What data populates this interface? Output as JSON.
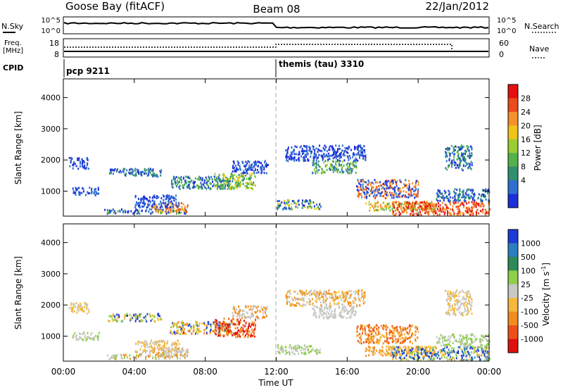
{
  "header": {
    "station": "Goose Bay (fitACF)",
    "beam": "Beam 08",
    "date": "22/Jan/2012"
  },
  "noise_panel": {
    "left_label": "N.Sky",
    "right_label": "N.Search",
    "left_ticks": [
      "10^5",
      "10^0"
    ],
    "right_ticks": [
      "10^5",
      "10^0"
    ]
  },
  "freq_panel": {
    "left_label_line1": "Freq.",
    "left_label_line2": "[MHz]",
    "right_label": "Nave",
    "left_ticks": [
      "18",
      "8"
    ],
    "right_ticks": [
      "60",
      "0"
    ]
  },
  "cpid": {
    "label": "CPID",
    "segments": [
      {
        "name": "pcp 9211",
        "start_hour": 0
      },
      {
        "name": "themis (tau) 3310",
        "start_hour": 12
      }
    ]
  },
  "colors": {
    "power": [
      "#1c2fd8",
      "#2e6fcf",
      "#2f8f6e",
      "#55b24a",
      "#9acd32",
      "#f0c419",
      "#f5902a",
      "#ec4a1a",
      "#e51010"
    ],
    "velocity": [
      "#1d3bd6",
      "#2c7fbf",
      "#2e8b57",
      "#8fcf4a",
      "#c8c8c4",
      "#f5b83a",
      "#f28c1e",
      "#ee4f17",
      "#e01010"
    ]
  },
  "chart_data": [
    {
      "type": "heatmap",
      "name": "power",
      "ylabel": "Slant Range [km]",
      "yticks": [
        "1000",
        "2000",
        "3000",
        "4000"
      ],
      "ylim": [
        200,
        4600
      ],
      "xlim_hours": [
        0,
        24
      ],
      "colorbar_label": "Power [dB]",
      "colorbar_ticks": [
        "4",
        "8",
        "12",
        "16",
        "20",
        "24",
        "28"
      ],
      "regions": [
        {
          "t0": 0.3,
          "t1": 1.4,
          "r0": 1750,
          "r1": 2100,
          "c": [
            0,
            1
          ]
        },
        {
          "t0": 0.5,
          "t1": 2.0,
          "r0": 900,
          "r1": 1150,
          "c": [
            0,
            1
          ]
        },
        {
          "t0": 2.5,
          "t1": 5.5,
          "r0": 1500,
          "r1": 1750,
          "c": [
            0,
            1,
            2
          ]
        },
        {
          "t0": 2.3,
          "t1": 7.0,
          "r0": 300,
          "r1": 450,
          "c": [
            0,
            1,
            3
          ]
        },
        {
          "t0": 5.0,
          "t1": 7.0,
          "r0": 350,
          "r1": 650,
          "c": [
            5,
            6,
            7
          ]
        },
        {
          "t0": 4.0,
          "t1": 6.5,
          "r0": 500,
          "r1": 900,
          "c": [
            0,
            1
          ]
        },
        {
          "t0": 6.0,
          "t1": 9.5,
          "r0": 1100,
          "r1": 1500,
          "c": [
            0,
            1,
            2,
            3
          ]
        },
        {
          "t0": 8.5,
          "t1": 10.8,
          "r0": 1100,
          "r1": 1600,
          "c": [
            2,
            3,
            4,
            5
          ]
        },
        {
          "t0": 9.5,
          "t1": 11.5,
          "r0": 1600,
          "r1": 2000,
          "c": [
            0,
            1
          ]
        },
        {
          "t0": 12.0,
          "t1": 14.5,
          "r0": 450,
          "r1": 750,
          "c": [
            0,
            1,
            2,
            4,
            5
          ]
        },
        {
          "t0": 14.0,
          "t1": 16.5,
          "r0": 1600,
          "r1": 2000,
          "c": [
            1,
            2,
            3,
            4
          ]
        },
        {
          "t0": 12.5,
          "t1": 17.0,
          "r0": 2000,
          "r1": 2500,
          "c": [
            0,
            1
          ]
        },
        {
          "t0": 16.5,
          "t1": 20.0,
          "r0": 800,
          "r1": 1400,
          "c": [
            0,
            1,
            6,
            7
          ]
        },
        {
          "t0": 17.0,
          "t1": 21.0,
          "r0": 400,
          "r1": 700,
          "c": [
            3,
            4,
            5,
            6
          ]
        },
        {
          "t0": 18.5,
          "t1": 24.0,
          "r0": 250,
          "r1": 700,
          "c": [
            6,
            7,
            8
          ]
        },
        {
          "t0": 21.5,
          "t1": 23.0,
          "r0": 1700,
          "r1": 2500,
          "c": [
            0,
            1,
            2,
            3
          ]
        },
        {
          "t0": 21.0,
          "t1": 24.0,
          "r0": 700,
          "r1": 1100,
          "c": [
            0,
            1,
            2
          ]
        }
      ]
    },
    {
      "type": "heatmap",
      "name": "velocity",
      "ylabel": "Slant Range [km]",
      "yticks": [
        "1000",
        "2000",
        "3000",
        "4000"
      ],
      "ylim": [
        200,
        4600
      ],
      "xlim_hours": [
        0,
        24
      ],
      "xlabel": "Time UT",
      "xticks": [
        "00:00",
        "04:00",
        "08:00",
        "12:00",
        "16:00",
        "20:00",
        "00:00"
      ],
      "colorbar_label": "Velocity [m s",
      "colorbar_label_sup": "-1",
      "colorbar_label_end": "]",
      "colorbar_ticks": [
        "1000",
        "500",
        "100",
        "25",
        "-25",
        "-100",
        "-500",
        "-1000"
      ],
      "regions": [
        {
          "t0": 0.3,
          "t1": 1.4,
          "r0": 1750,
          "r1": 2100,
          "c": [
            4,
            5
          ]
        },
        {
          "t0": 0.5,
          "t1": 2.0,
          "r0": 900,
          "r1": 1150,
          "c": [
            3,
            4
          ]
        },
        {
          "t0": 2.5,
          "t1": 5.5,
          "r0": 1500,
          "r1": 1750,
          "c": [
            0,
            3,
            5
          ]
        },
        {
          "t0": 2.3,
          "t1": 7.0,
          "r0": 300,
          "r1": 450,
          "c": [
            3,
            4,
            6
          ]
        },
        {
          "t0": 5.0,
          "t1": 7.0,
          "r0": 350,
          "r1": 650,
          "c": [
            4,
            6
          ]
        },
        {
          "t0": 4.0,
          "t1": 6.5,
          "r0": 500,
          "r1": 900,
          "c": [
            4,
            5
          ]
        },
        {
          "t0": 6.0,
          "t1": 9.5,
          "r0": 1100,
          "r1": 1500,
          "c": [
            0,
            3,
            5,
            6
          ]
        },
        {
          "t0": 8.5,
          "t1": 10.8,
          "r0": 1000,
          "r1": 1600,
          "c": [
            6,
            7,
            8
          ]
        },
        {
          "t0": 9.5,
          "t1": 11.5,
          "r0": 1600,
          "r1": 2000,
          "c": [
            4,
            6
          ]
        },
        {
          "t0": 12.0,
          "t1": 14.5,
          "r0": 450,
          "r1": 750,
          "c": [
            3,
            4
          ]
        },
        {
          "t0": 14.0,
          "t1": 16.5,
          "r0": 1600,
          "r1": 2000,
          "c": [
            4
          ]
        },
        {
          "t0": 12.5,
          "t1": 17.0,
          "r0": 2000,
          "r1": 2500,
          "c": [
            4,
            5,
            6
          ]
        },
        {
          "t0": 16.5,
          "t1": 20.0,
          "r0": 800,
          "r1": 1400,
          "c": [
            5,
            6,
            7
          ]
        },
        {
          "t0": 17.0,
          "t1": 21.0,
          "r0": 400,
          "r1": 700,
          "c": [
            5,
            6
          ]
        },
        {
          "t0": 18.5,
          "t1": 24.0,
          "r0": 250,
          "r1": 700,
          "c": [
            0,
            1,
            3,
            5
          ]
        },
        {
          "t0": 21.5,
          "t1": 23.0,
          "r0": 1700,
          "r1": 2500,
          "c": [
            4,
            5
          ]
        },
        {
          "t0": 21.0,
          "t1": 24.0,
          "r0": 700,
          "r1": 1100,
          "c": [
            3,
            4
          ]
        }
      ]
    }
  ]
}
